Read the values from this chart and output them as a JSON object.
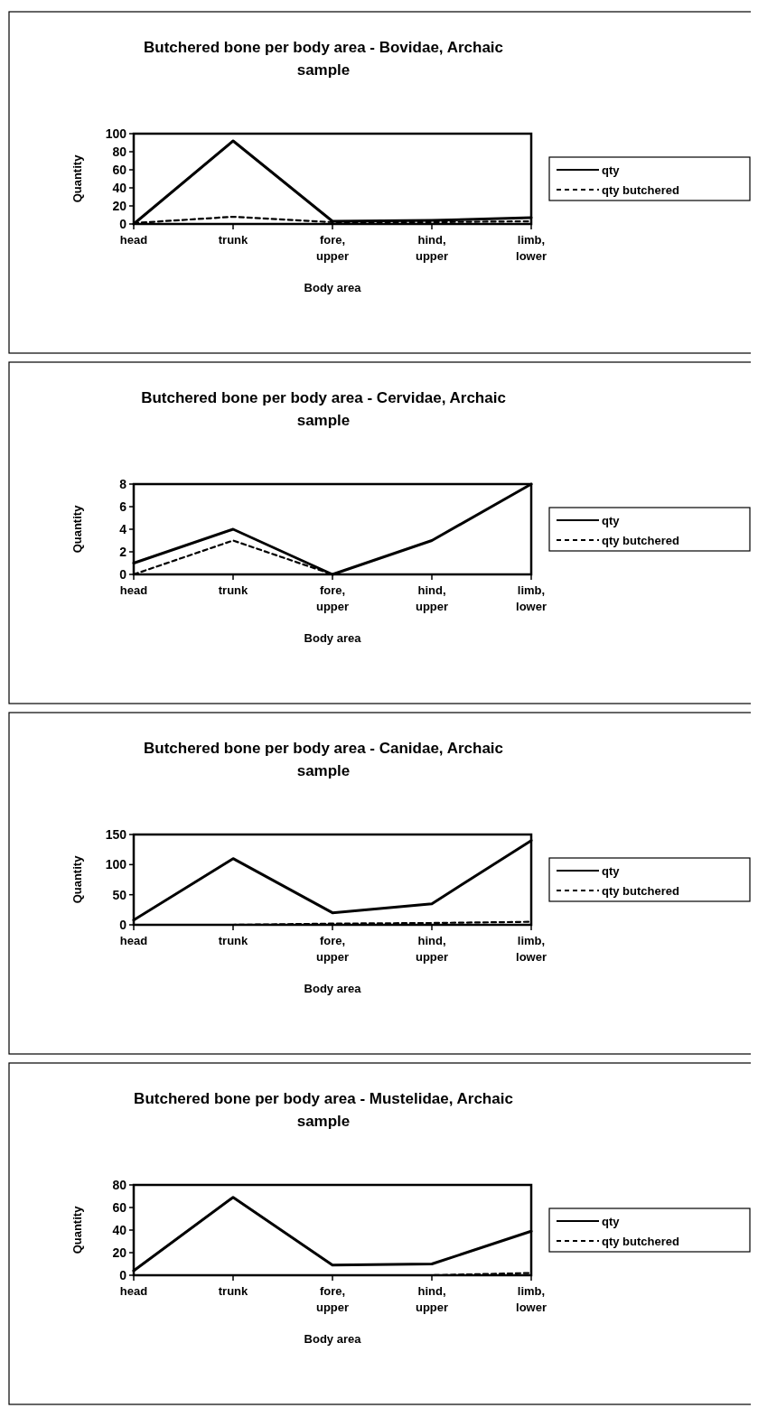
{
  "chart_data": [
    {
      "type": "line",
      "title": "Butchered bone per body area - Bovidae, Archaic sample",
      "xlabel": "Body area",
      "ylabel": "Quantity",
      "categories": [
        "head",
        "trunk",
        "fore, upper",
        "hind, upper",
        "limb, lower"
      ],
      "ylim": [
        0,
        100
      ],
      "yticks": [
        0,
        20,
        40,
        60,
        80,
        100
      ],
      "legend": "right",
      "marker": "none",
      "series": [
        {
          "name": "qty",
          "color": "#000000",
          "line_style": "solid",
          "values": [
            0,
            92,
            3,
            4,
            7
          ]
        },
        {
          "name": "qty butchered",
          "color": "#000000",
          "line_style": "dashed",
          "values": [
            1,
            8,
            2,
            2,
            3
          ]
        }
      ]
    },
    {
      "type": "line",
      "title": "Butchered bone per body area - Cervidae, Archaic sample",
      "xlabel": "Body area",
      "ylabel": "Quantity",
      "categories": [
        "head",
        "trunk",
        "fore, upper",
        "hind, upper",
        "limb, lower"
      ],
      "ylim": [
        0,
        8
      ],
      "yticks": [
        0,
        2,
        4,
        6,
        8
      ],
      "legend": "right",
      "marker": "none",
      "series": [
        {
          "name": "qty",
          "color": "#000000",
          "line_style": "solid",
          "values": [
            1,
            4,
            0,
            3,
            8
          ]
        },
        {
          "name": "qty butchered",
          "color": "#000000",
          "line_style": "dashed",
          "values": [
            0,
            3,
            0,
            0,
            0
          ]
        }
      ]
    },
    {
      "type": "line",
      "title": "Butchered bone per body area - Canidae, Archaic sample",
      "xlabel": "Body area",
      "ylabel": "Quantity",
      "categories": [
        "head",
        "trunk",
        "fore, upper",
        "hind, upper",
        "limb, lower"
      ],
      "ylim": [
        0,
        150
      ],
      "yticks": [
        0,
        50,
        100,
        150
      ],
      "legend": "right",
      "marker": "none",
      "series": [
        {
          "name": "qty",
          "color": "#000000",
          "line_style": "solid",
          "values": [
            8,
            110,
            20,
            35,
            140
          ]
        },
        {
          "name": "qty butchered",
          "color": "#000000",
          "line_style": "dashed",
          "values": [
            0,
            0,
            2,
            3,
            5
          ]
        }
      ]
    },
    {
      "type": "line",
      "title": "Butchered bone per body area - Mustelidae, Archaic sample",
      "xlabel": "Body area",
      "ylabel": "Quantity",
      "categories": [
        "head",
        "trunk",
        "fore, upper",
        "hind, upper",
        "limb, lower"
      ],
      "ylim": [
        0,
        80
      ],
      "yticks": [
        0,
        20,
        40,
        60,
        80
      ],
      "legend": "right",
      "marker": "none",
      "series": [
        {
          "name": "qty",
          "color": "#000000",
          "line_style": "solid",
          "values": [
            4,
            69,
            9,
            10,
            39
          ]
        },
        {
          "name": "qty butchered",
          "color": "#000000",
          "line_style": "dashed",
          "values": [
            0,
            0,
            0,
            0,
            2
          ]
        }
      ]
    }
  ]
}
